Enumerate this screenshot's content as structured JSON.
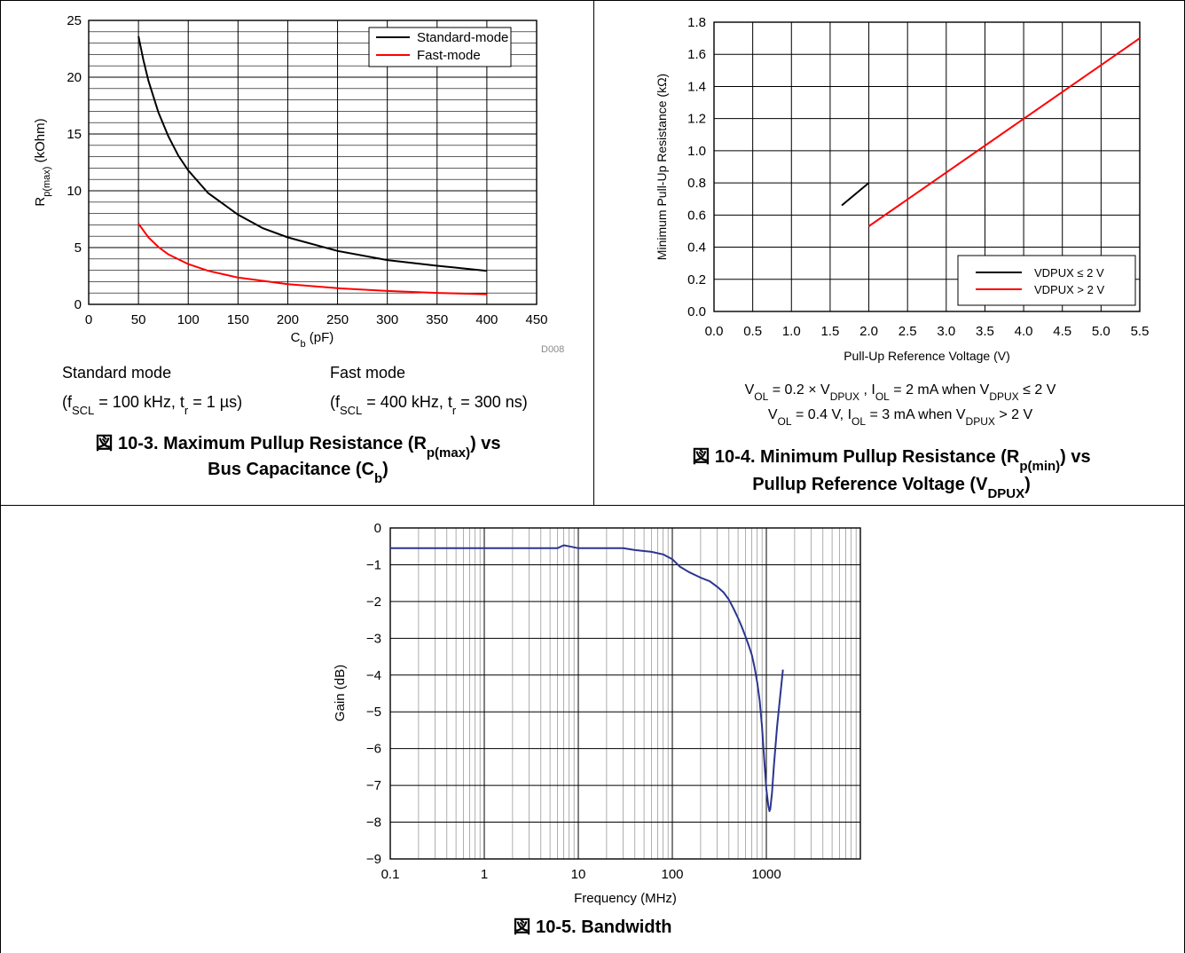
{
  "figure_3": {
    "note_standard_title": "Standard mode",
    "note_standard_params": {
      "open": "(f",
      "f_sub": "SCL",
      "mid": " = 100 kHz, t",
      "t_sub": "r",
      "close": " = 1 µs)"
    },
    "note_fast_title": "Fast mode",
    "note_fast_params": {
      "open": "(f",
      "f_sub": "SCL",
      "mid": " = 400 kHz, t",
      "t_sub": "r",
      "close": " = 300 ns)"
    },
    "tag": "D008",
    "caption_line1": {
      "main": "図 10-3. Maximum Pullup Resistance (R",
      "sub": "p(max)",
      "tail": ") vs"
    },
    "caption_line2": {
      "main": "Bus Capacitance (C",
      "sub": "b",
      "tail": ")"
    }
  },
  "figure_4": {
    "cond_line1": {
      "a": "V",
      "a_sub": "OL",
      "b": " = 0.2 × V",
      "b_sub": "DPUX",
      "c": " , I",
      "c_sub": "OL",
      "d": " = 2 mA when V",
      "d_sub": "DPUX",
      "e": " ≤ 2 V"
    },
    "cond_line2": {
      "a": "V",
      "a_sub": "OL",
      "b": " = 0.4 V, I",
      "b_sub": "OL",
      "c": " = 3 mA when V",
      "c_sub": "DPUX",
      "d": " > 2 V"
    },
    "caption_line1": {
      "main": "図 10-4. Minimum Pullup Resistance (R",
      "sub": "p(min)",
      "tail": ") vs"
    },
    "caption_line2": {
      "main": "Pullup Reference Voltage (V",
      "sub": "DPUX",
      "tail": ")"
    }
  },
  "figure_5": {
    "caption": "図 10-5. Bandwidth"
  },
  "chart_data": [
    {
      "type": "line",
      "xlabel": {
        "main": "C",
        "sub": "b",
        "tail": " (pF)"
      },
      "ylabel": {
        "main": "R",
        "sub": "p(max)",
        "tail": " (kOhm)"
      },
      "xlim": [
        0,
        450
      ],
      "ylim": [
        0,
        25
      ],
      "x_ticks": [
        "0",
        "50",
        "100",
        "150",
        "200",
        "250",
        "300",
        "350",
        "400",
        "450"
      ],
      "y_ticks": [
        "0",
        "5",
        "10",
        "15",
        "20",
        "25"
      ],
      "grid": true,
      "legend": "top-right",
      "series": [
        {
          "name": "Standard-mode",
          "color": "#000000",
          "x": [
            50,
            55,
            60,
            70,
            80,
            90,
            100,
            120,
            150,
            175,
            200,
            250,
            300,
            350,
            400
          ],
          "y": [
            23.6,
            21.5,
            19.7,
            16.9,
            14.8,
            13.1,
            11.8,
            9.8,
            7.9,
            6.7,
            5.9,
            4.7,
            3.9,
            3.4,
            2.95
          ]
        },
        {
          "name": "Fast-mode",
          "color": "#ff0000",
          "x": [
            50,
            60,
            70,
            80,
            100,
            120,
            150,
            200,
            250,
            300,
            350,
            400
          ],
          "y": [
            7.1,
            5.9,
            5.05,
            4.4,
            3.55,
            2.95,
            2.36,
            1.77,
            1.42,
            1.18,
            1.01,
            0.89
          ]
        }
      ]
    },
    {
      "type": "line",
      "xlabel": "Pull-Up Reference Voltage (V)",
      "ylabel": "Minimum Pull-Up Resistance (kΩ)",
      "xlim": [
        0,
        5.5
      ],
      "ylim": [
        0,
        1.8
      ],
      "x_ticks": [
        "0.0",
        "0.5",
        "1.0",
        "1.5",
        "2.0",
        "2.5",
        "3.0",
        "3.5",
        "4.0",
        "4.5",
        "5.0",
        "5.5"
      ],
      "y_ticks": [
        "0.0",
        "0.2",
        "0.4",
        "0.6",
        "0.8",
        "1.0",
        "1.2",
        "1.4",
        "1.6",
        "1.8"
      ],
      "grid": true,
      "legend": "bottom-right",
      "series": [
        {
          "name": "VDPUX ≤ 2 V",
          "color": "#000000",
          "x": [
            1.65,
            2.0
          ],
          "y": [
            0.66,
            0.8
          ]
        },
        {
          "name": "VDPUX > 2 V",
          "color": "#ff0000",
          "x": [
            2.0,
            5.5
          ],
          "y": [
            0.53,
            1.7
          ]
        }
      ]
    },
    {
      "type": "line",
      "xlabel": "Frequency (MHz)",
      "ylabel": "Gain (dB)",
      "xscale": "log",
      "xlim": [
        0.1,
        1000
      ],
      "ylim": [
        -9,
        0
      ],
      "x_ticks": [
        "0.1",
        "1",
        "10",
        "100",
        "1000"
      ],
      "y_ticks": [
        "0",
        "−1",
        "−2",
        "−3",
        "−4",
        "−5",
        "−6",
        "−7",
        "−8",
        "−9"
      ],
      "grid": true,
      "series": [
        {
          "color": "#2b3590",
          "x": [
            0.1,
            0.5,
            1,
            3,
            6,
            7,
            8,
            10,
            15,
            20,
            30,
            40,
            60,
            80,
            100,
            120,
            150,
            200,
            250,
            300,
            350,
            400,
            450,
            500,
            550,
            600,
            650,
            700,
            750,
            800,
            850,
            900,
            950,
            1000,
            1050,
            1080,
            1100,
            1150,
            1200,
            1300,
            1400,
            1500
          ],
          "y": [
            -0.55,
            -0.55,
            -0.55,
            -0.55,
            -0.55,
            -0.47,
            -0.5,
            -0.55,
            -0.55,
            -0.55,
            -0.55,
            -0.6,
            -0.65,
            -0.72,
            -0.85,
            -1.05,
            -1.2,
            -1.35,
            -1.45,
            -1.6,
            -1.75,
            -1.95,
            -2.2,
            -2.45,
            -2.7,
            -2.95,
            -3.2,
            -3.45,
            -3.8,
            -4.2,
            -4.7,
            -5.4,
            -6.3,
            -7.1,
            -7.55,
            -7.7,
            -7.65,
            -7.2,
            -6.5,
            -5.4,
            -4.6,
            -3.85
          ]
        }
      ]
    }
  ]
}
